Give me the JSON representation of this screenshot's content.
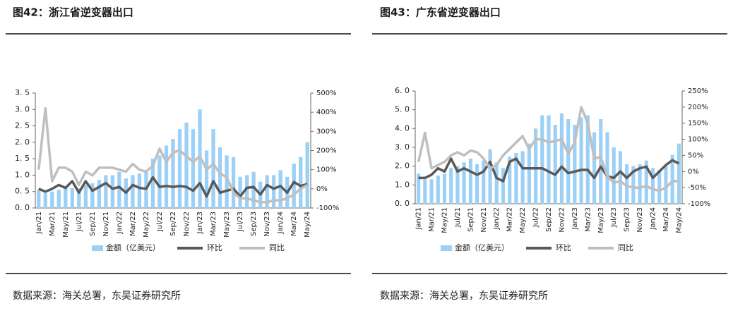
{
  "chart_data": [
    {
      "type": "bar-line",
      "title": "图42：浙江省逆变器出口",
      "source": "数据来源：海关总署，东吴证券研究所",
      "categories": [
        "Jan/21",
        null,
        "Mar/21",
        null,
        "May/21",
        null,
        "Jul/21",
        null,
        "Sep/21",
        null,
        "Nov/21",
        null,
        "Jan/22",
        null,
        "Mar/22",
        null,
        "May/22",
        null,
        "Jul/22",
        null,
        "Sep/22",
        null,
        "Nov/22",
        null,
        "Jan/23",
        null,
        "Mar/23",
        null,
        "May/23",
        null,
        "Jul/23",
        null,
        "Sep/23",
        null,
        "Nov/23",
        null,
        "Jan/24",
        null,
        "Mar/24",
        null,
        "May/24"
      ],
      "series": [
        {
          "name": "金额（亿美元）",
          "color": "#9dd0f5",
          "kind": "bar",
          "values": [
            0.55,
            0.45,
            0.5,
            0.55,
            0.6,
            0.6,
            0.6,
            0.7,
            0.75,
            0.85,
            1.0,
            1.0,
            1.1,
            0.9,
            1.0,
            1.05,
            1.1,
            1.5,
            1.6,
            1.9,
            2.1,
            2.4,
            2.6,
            2.4,
            3.0,
            1.75,
            2.4,
            1.85,
            1.6,
            1.55,
            0.95,
            1.0,
            1.1,
            0.8,
            1.0,
            1.0,
            1.15,
            0.95,
            1.35,
            1.55,
            2.0
          ]
        },
        {
          "name": "环比",
          "color": "#595959",
          "kind": "line",
          "axis": "y2",
          "values": [
            0,
            -15,
            0,
            20,
            5,
            40,
            -20,
            40,
            -10,
            10,
            30,
            0,
            10,
            -20,
            20,
            5,
            0,
            60,
            10,
            15,
            10,
            15,
            10,
            -10,
            30,
            -40,
            40,
            -20,
            -10,
            0,
            -40,
            5,
            10,
            -30,
            20,
            0,
            15,
            -20,
            35,
            15,
            25
          ]
        },
        {
          "name": "同比",
          "color": "#bfbfbf",
          "kind": "line",
          "axis": "y2",
          "values": [
            100,
            420,
            40,
            110,
            110,
            90,
            20,
            90,
            70,
            110,
            110,
            110,
            100,
            90,
            130,
            100,
            90,
            120,
            210,
            140,
            190,
            200,
            170,
            140,
            170,
            100,
            130,
            80,
            60,
            -20,
            -50,
            -50,
            -60,
            -70,
            -70,
            -60,
            -60,
            -50,
            -30,
            0,
            20
          ]
        }
      ],
      "ylim": [
        0,
        3.5
      ],
      "yticks": [
        {
          "value": 0,
          "label": "0. 0"
        },
        {
          "value": 0.5,
          "label": "0. 5"
        },
        {
          "value": 1,
          "label": "1. 0"
        },
        {
          "value": 1.5,
          "label": "1. 5"
        },
        {
          "value": 2,
          "label": "2. 0"
        },
        {
          "value": 2.5,
          "label": "2. 5"
        },
        {
          "value": 3,
          "label": "3. 0"
        },
        {
          "value": 3.5,
          "label": "3. 5"
        }
      ],
      "y2lim": [
        -100,
        500
      ],
      "y2ticks": [
        {
          "value": -100,
          "label": "-100%"
        },
        {
          "value": 0,
          "label": "0%"
        },
        {
          "value": 100,
          "label": "100%"
        },
        {
          "value": 200,
          "label": "200%"
        },
        {
          "value": 300,
          "label": "300%"
        },
        {
          "value": 400,
          "label": "400%"
        },
        {
          "value": 500,
          "label": "500%"
        }
      ],
      "legend": "bottom"
    },
    {
      "type": "bar-line",
      "title": "图43：广东省逆变器出口",
      "source": "数据来源：海关总署，东吴证券研究所",
      "categories": [
        "Jan/21",
        null,
        "Mar/21",
        null,
        "May/21",
        null,
        "Jul/21",
        null,
        "Sep/21",
        null,
        "Nov/21",
        null,
        "Jan/22",
        null,
        "Mar/22",
        null,
        "May/22",
        null,
        "Jul/22",
        null,
        "Sep/22",
        null,
        "Nov/22",
        null,
        "Jan/23",
        null,
        "Mar/23",
        null,
        "May/23",
        null,
        "Jul/23",
        null,
        "Sep/23",
        null,
        "Nov/23",
        null,
        "Jan/24",
        null,
        "Mar/24",
        null,
        "May/24"
      ],
      "series": [
        {
          "name": "金额（亿美元）",
          "color": "#9dd0f5",
          "kind": "bar",
          "values": [
            1.6,
            1.3,
            1.3,
            1.5,
            1.6,
            1.9,
            2.0,
            2.2,
            2.4,
            2.1,
            2.3,
            2.9,
            2.2,
            1.9,
            2.5,
            2.7,
            2.8,
            3.2,
            4.0,
            4.7,
            4.7,
            4.2,
            4.8,
            4.5,
            4.2,
            4.6,
            4.7,
            3.8,
            4.5,
            3.8,
            3.0,
            2.8,
            2.1,
            2.0,
            2.1,
            2.3,
            1.9,
            1.8,
            2.0,
            2.6,
            3.2
          ]
        },
        {
          "name": "环比",
          "color": "#595959",
          "kind": "line",
          "axis": "y2",
          "values": [
            -20,
            -20,
            -10,
            10,
            0,
            40,
            0,
            10,
            0,
            -10,
            0,
            30,
            -20,
            -30,
            30,
            40,
            10,
            10,
            10,
            10,
            0,
            -10,
            15,
            -5,
            0,
            5,
            5,
            -20,
            15,
            -15,
            -20,
            0,
            -20,
            0,
            10,
            15,
            -20,
            0,
            20,
            35,
            25
          ]
        },
        {
          "name": "同比",
          "color": "#bfbfbf",
          "kind": "line",
          "axis": "y2",
          "values": [
            30,
            120,
            10,
            20,
            30,
            50,
            60,
            50,
            65,
            60,
            40,
            10,
            20,
            50,
            70,
            90,
            110,
            70,
            100,
            100,
            90,
            95,
            100,
            55,
            90,
            200,
            150,
            40,
            45,
            -15,
            -35,
            -30,
            -45,
            -50,
            -50,
            -45,
            -55,
            -60,
            -50,
            -30,
            -30
          ]
        }
      ],
      "ylim": [
        0,
        6
      ],
      "yticks": [
        {
          "value": 0,
          "label": "0. 0"
        },
        {
          "value": 1,
          "label": "1. 0"
        },
        {
          "value": 2,
          "label": "2. 0"
        },
        {
          "value": 3,
          "label": "3. 0"
        },
        {
          "value": 4,
          "label": "4. 0"
        },
        {
          "value": 5,
          "label": "5. 0"
        },
        {
          "value": 6,
          "label": "6. 0"
        }
      ],
      "y2lim": [
        -100,
        250
      ],
      "y2ticks": [
        {
          "value": -100,
          "label": "-100%"
        },
        {
          "value": -50,
          "label": "-50%"
        },
        {
          "value": 0,
          "label": "0%"
        },
        {
          "value": 50,
          "label": "50%"
        },
        {
          "value": 100,
          "label": "100%"
        },
        {
          "value": 150,
          "label": "150%"
        },
        {
          "value": 200,
          "label": "200%"
        },
        {
          "value": 250,
          "label": "250%"
        }
      ],
      "legend": "bottom"
    }
  ]
}
